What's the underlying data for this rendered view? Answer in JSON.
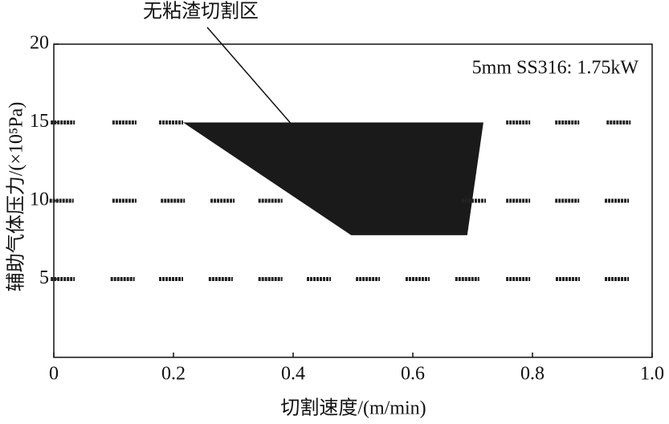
{
  "chart_data": {
    "type": "scatter",
    "annotation": "无粘渣切割区",
    "label": "5mm SS316: 1.75kW",
    "xlabel": "切割速度/(m/min)",
    "ylabel": "辅助气体压力/(×10⁵Pa)",
    "xlim": [
      0,
      1
    ],
    "ylim": [
      0,
      20
    ],
    "xticks": [
      0,
      0.2,
      0.4,
      0.6,
      0.8,
      {
        "value": 1,
        "label": "1.0"
      }
    ],
    "yticks": [
      5,
      10,
      15,
      20
    ],
    "series": [
      {
        "color": "#222",
        "x": [
          0.015,
          0.118,
          0.196,
          0.776,
          0.858,
          0.944
        ],
        "y": [
          15,
          15,
          15,
          15,
          15,
          15
        ]
      },
      {
        "color": "#222",
        "x": [
          0.013,
          0.118,
          0.199,
          0.282,
          0.362,
          0.702,
          0.776,
          0.858,
          0.941
        ],
        "y": [
          10,
          10,
          10,
          10,
          10,
          10,
          10,
          10,
          10
        ]
      },
      {
        "color": "#222",
        "x": [
          0.015,
          0.115,
          0.196,
          0.279,
          0.362,
          0.443,
          0.525,
          0.608,
          0.691,
          0.776,
          0.859,
          0.941
        ],
        "y": [
          5,
          5,
          5,
          5,
          5,
          5,
          5,
          5,
          5,
          5,
          5,
          5
        ]
      }
    ],
    "region": {
      "color": "#1a1a1a",
      "x": [
        0.216,
        0.718,
        0.691,
        0.497
      ],
      "y": [
        15,
        15,
        7.8,
        7.8
      ]
    }
  }
}
